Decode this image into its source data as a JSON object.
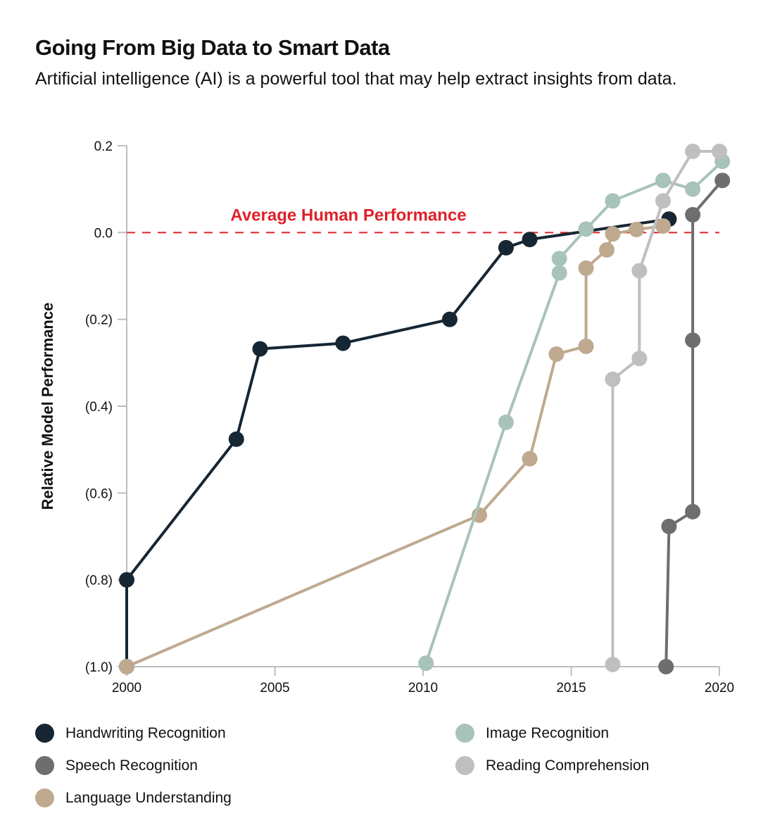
{
  "header": {
    "title": "Going From Big Data to Smart Data",
    "subtitle": "Artificial intelligence (AI) is a powerful tool that may help extract insights from data."
  },
  "chart_data": {
    "type": "line",
    "title": "Going From Big Data to Smart Data",
    "xlabel": "",
    "ylabel": "Relative Model Performance",
    "xlim": [
      2000,
      2020
    ],
    "ylim": [
      -1.0,
      0.2
    ],
    "x_ticks": [
      2000,
      2005,
      2010,
      2015,
      2020
    ],
    "x_tick_labels": [
      "2000",
      "2005",
      "2010",
      "2015",
      "2020"
    ],
    "y_ticks": [
      0.2,
      0.0,
      -0.2,
      -0.4,
      -0.6,
      -0.8,
      -1.0
    ],
    "y_tick_labels": [
      "0.2",
      "0.0",
      "(0.2)",
      "(0.4)",
      "(0.6)",
      "(0.8)",
      "(1.0)"
    ],
    "grid": false,
    "legend_position": "bottom",
    "reference_line": {
      "y": 0.0,
      "label": "Average Human Performance",
      "color": "#e02028",
      "style": "dashed"
    },
    "series": [
      {
        "name": "Handwriting Recognition",
        "color": "#172633",
        "points": [
          [
            2000.0,
            -1.0
          ],
          [
            2000.0,
            -0.8
          ],
          [
            2003.7,
            -0.476
          ],
          [
            2004.5,
            -0.268
          ],
          [
            2007.3,
            -0.255
          ],
          [
            2010.9,
            -0.2
          ],
          [
            2012.8,
            -0.035
          ],
          [
            2013.6,
            -0.016
          ],
          [
            2018.3,
            0.031
          ]
        ]
      },
      {
        "name": "Speech Recognition",
        "color": "#6e6e70",
        "points": [
          [
            2018.2,
            -1.0
          ],
          [
            2018.3,
            -0.677
          ],
          [
            2019.1,
            -0.643
          ],
          [
            2019.1,
            -0.248
          ],
          [
            2019.1,
            0.041
          ],
          [
            2020.1,
            0.12
          ]
        ]
      },
      {
        "name": "Language Understanding",
        "color": "#bfa98f",
        "points": [
          [
            2000.0,
            -1.0
          ],
          [
            2011.9,
            -0.651
          ],
          [
            2013.6,
            -0.521
          ],
          [
            2014.5,
            -0.28
          ],
          [
            2015.5,
            -0.262
          ],
          [
            2015.5,
            -0.082
          ],
          [
            2016.2,
            -0.04
          ],
          [
            2016.4,
            -0.003
          ],
          [
            2017.2,
            0.007
          ],
          [
            2018.1,
            0.015
          ]
        ]
      },
      {
        "name": "Image Recognition",
        "color": "#a8c3b9",
        "points": [
          [
            2010.1,
            -0.992
          ],
          [
            2012.8,
            -0.437
          ],
          [
            2014.6,
            -0.093
          ],
          [
            2014.6,
            -0.06
          ],
          [
            2015.5,
            0.008
          ],
          [
            2016.4,
            0.073
          ],
          [
            2018.1,
            0.12
          ],
          [
            2019.1,
            0.1
          ],
          [
            2020.1,
            0.164
          ]
        ]
      },
      {
        "name": "Reading Comprehension",
        "color": "#bfbfc1",
        "points": [
          [
            2016.4,
            -0.995
          ],
          [
            2016.4,
            -0.338
          ],
          [
            2017.3,
            -0.29
          ],
          [
            2017.3,
            -0.088
          ],
          [
            2018.1,
            0.073
          ],
          [
            2019.1,
            0.187
          ],
          [
            2020.0,
            0.187
          ]
        ]
      }
    ]
  }
}
